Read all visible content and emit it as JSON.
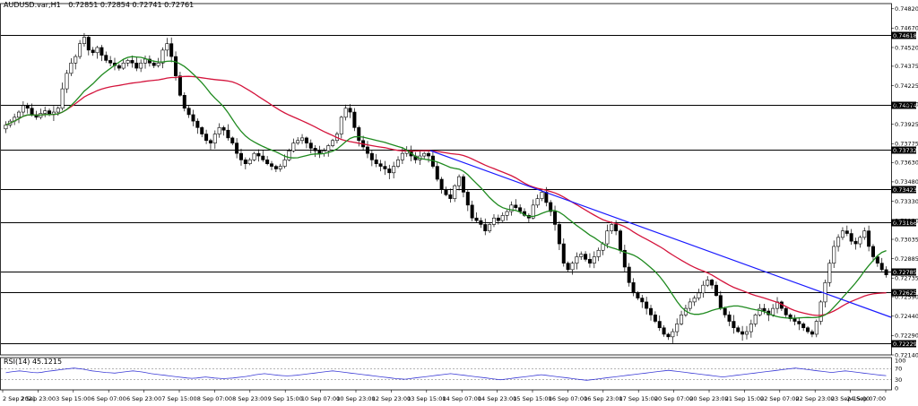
{
  "header": {
    "symbol": "AUDUSD.var,H1",
    "ohlc": "0.72851 0.72854 0.72741 0.72761"
  },
  "colors": {
    "background": "#ffffff",
    "candle": "#000000",
    "ma_fast": "#1f8a1f",
    "ma_slow": "#d4143c",
    "trendline": "#1a1aff",
    "level_line": "#000000",
    "rsi_line": "#3b3bd6",
    "label_bg": "#000000"
  },
  "chart_data": {
    "type": "candlestick",
    "ylim": [
      0.7214,
      0.7486
    ],
    "y_ticks": [
      "0.74820",
      "0.74670",
      "0.74520",
      "0.74375",
      "0.74225",
      "0.74080",
      "0.73925",
      "0.73775",
      "0.73630",
      "0.73480",
      "0.73330",
      "0.73180",
      "0.73035",
      "0.72885",
      "0.72735",
      "0.72590",
      "0.72440",
      "0.72290",
      "0.72140"
    ],
    "x_ticks": [
      "2 Sep 2021",
      "2 Sep 23:00",
      "3 Sep 15:00",
      "6 Sep 07:00",
      "6 Sep 23:00",
      "7 Sep 15:00",
      "8 Sep 07:00",
      "8 Sep 23:00",
      "9 Sep 15:00",
      "10 Sep 07:00",
      "10 Sep 23:00",
      "12 Sep 23:00",
      "13 Sep 15:00",
      "14 Sep 07:00",
      "14 Sep 23:00",
      "15 Sep 15:00",
      "16 Sep 07:00",
      "16 Sep 23:00",
      "17 Sep 15:00",
      "20 Sep 07:00",
      "20 Sep 23:00",
      "21 Sep 15:00",
      "22 Sep 07:00",
      "22 Sep 23:00",
      "23 Sep 15:00",
      "24 Sep 07:00"
    ],
    "levels": [
      "0.74618",
      "0.74074",
      "0.73732",
      "0.73423",
      "0.73166",
      "0.72785",
      "0.72625",
      "0.72229"
    ],
    "close_path": [
      0.7392,
      0.7395,
      0.7398,
      0.7402,
      0.7407,
      0.7405,
      0.74,
      0.7398,
      0.7401,
      0.7403,
      0.74,
      0.7402,
      0.7405,
      0.742,
      0.7432,
      0.744,
      0.7445,
      0.7455,
      0.746,
      0.745,
      0.7448,
      0.7452,
      0.7446,
      0.7442,
      0.744,
      0.7438,
      0.7436,
      0.744,
      0.7442,
      0.744,
      0.7436,
      0.744,
      0.7443,
      0.744,
      0.7438,
      0.744,
      0.745,
      0.7455,
      0.7445,
      0.743,
      0.7415,
      0.7405,
      0.74,
      0.7395,
      0.739,
      0.7385,
      0.738,
      0.7378,
      0.7385,
      0.739,
      0.7388,
      0.7382,
      0.7378,
      0.737,
      0.7365,
      0.7362,
      0.7365,
      0.737,
      0.7368,
      0.7365,
      0.7362,
      0.736,
      0.7358,
      0.736,
      0.7365,
      0.7372,
      0.7378,
      0.738,
      0.7382,
      0.7378,
      0.7374,
      0.7372,
      0.737,
      0.7372,
      0.7376,
      0.738,
      0.7385,
      0.7398,
      0.7405,
      0.7402,
      0.739,
      0.738,
      0.7375,
      0.737,
      0.7365,
      0.7362,
      0.736,
      0.7358,
      0.7355,
      0.736,
      0.7365,
      0.737,
      0.7372,
      0.7368,
      0.7365,
      0.7368,
      0.737,
      0.7368,
      0.736,
      0.735,
      0.7342,
      0.7338,
      0.7335,
      0.7345,
      0.7352,
      0.734,
      0.733,
      0.732,
      0.7318,
      0.7315,
      0.731,
      0.7315,
      0.732,
      0.7318,
      0.7322,
      0.7325,
      0.733,
      0.7328,
      0.7325,
      0.7322,
      0.732,
      0.733,
      0.7335,
      0.734,
      0.7332,
      0.7325,
      0.7315,
      0.73,
      0.7285,
      0.728,
      0.7285,
      0.729,
      0.7292,
      0.7288,
      0.7285,
      0.729,
      0.7295,
      0.73,
      0.731,
      0.7315,
      0.731,
      0.7295,
      0.7282,
      0.727,
      0.7262,
      0.7258,
      0.7255,
      0.725,
      0.7245,
      0.724,
      0.7235,
      0.723,
      0.7228,
      0.7232,
      0.7238,
      0.7245,
      0.725,
      0.7255,
      0.7258,
      0.7262,
      0.7268,
      0.7272,
      0.7268,
      0.726,
      0.725,
      0.7245,
      0.724,
      0.7235,
      0.7232,
      0.723,
      0.7232,
      0.7238,
      0.7245,
      0.725,
      0.7248,
      0.7245,
      0.725,
      0.7255,
      0.725,
      0.7245,
      0.7242,
      0.724,
      0.7238,
      0.7235,
      0.7232,
      0.723,
      0.724,
      0.7255,
      0.727,
      0.7285,
      0.7298,
      0.7305,
      0.731,
      0.7308,
      0.7302,
      0.73,
      0.7305,
      0.731,
      0.7298,
      0.729,
      0.7285,
      0.728,
      0.7276
    ]
  },
  "rsi": {
    "label": "RSI(14) 45.1215",
    "ticks": [
      "100",
      "70",
      "30",
      "0"
    ],
    "values": [
      55,
      58,
      60,
      62,
      60,
      58,
      56,
      55,
      57,
      60,
      62,
      64,
      66,
      68,
      70,
      72,
      70,
      68,
      65,
      62,
      60,
      58,
      56,
      55,
      54,
      56,
      58,
      60,
      62,
      60,
      58,
      55,
      52,
      50,
      48,
      46,
      44,
      42,
      40,
      38,
      36,
      35,
      36,
      38,
      40,
      38,
      36,
      35,
      34,
      35,
      36,
      38,
      40,
      42,
      45,
      48,
      50,
      52,
      50,
      48,
      46,
      45,
      44,
      45,
      46,
      48,
      50,
      52,
      54,
      56,
      58,
      60,
      62,
      60,
      58,
      56,
      54,
      52,
      50,
      48,
      46,
      44,
      42,
      40,
      38,
      36,
      34,
      33,
      32,
      34,
      36,
      38,
      40,
      42,
      44,
      46,
      48,
      50,
      52,
      50,
      48,
      46,
      44,
      42,
      40,
      38,
      36,
      34,
      32,
      30,
      32,
      34,
      36,
      38,
      40,
      42,
      44,
      46,
      48,
      46,
      44,
      42,
      40,
      38,
      36,
      34,
      32,
      30,
      28,
      30,
      32,
      34,
      36,
      38,
      40,
      42,
      44,
      46,
      48,
      50,
      52,
      54,
      56,
      58,
      60,
      62,
      64,
      62,
      60,
      58,
      56,
      54,
      52,
      50,
      48,
      46,
      44,
      42,
      40,
      42,
      44,
      46,
      48,
      50,
      52,
      54,
      56,
      58,
      60,
      62,
      64,
      66,
      68,
      70,
      72,
      70,
      68,
      66,
      64,
      62,
      60,
      58,
      56,
      58,
      60,
      62,
      60,
      58,
      56,
      54,
      52,
      50,
      48,
      46,
      45
    ]
  }
}
